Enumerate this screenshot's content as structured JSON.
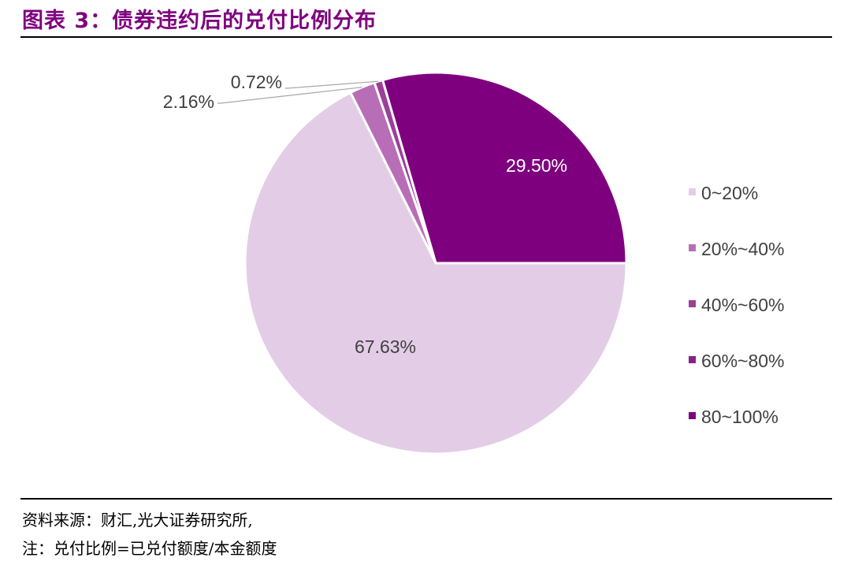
{
  "header": {
    "title": "图表 3：债券违约后的兑付比例分布"
  },
  "footer": {
    "source": "资料来源：财汇,光大证券研究所,",
    "note": "注：兑付比例=已兑付额度/本金额度"
  },
  "chart_data": {
    "type": "pie",
    "categories": [
      "0~20%",
      "20%~40%",
      "40%~60%",
      "60%~80%",
      "80~100%"
    ],
    "values": [
      67.63,
      2.16,
      0.72,
      0.0,
      29.5
    ],
    "data_labels": [
      "67.63%",
      "2.16%",
      "0.72%",
      "",
      "29.50%"
    ],
    "colors": [
      "#e3cde6",
      "#b86eb6",
      "#9b3f99",
      "#8a1f88",
      "#7f007f"
    ],
    "legend_position": "right"
  }
}
